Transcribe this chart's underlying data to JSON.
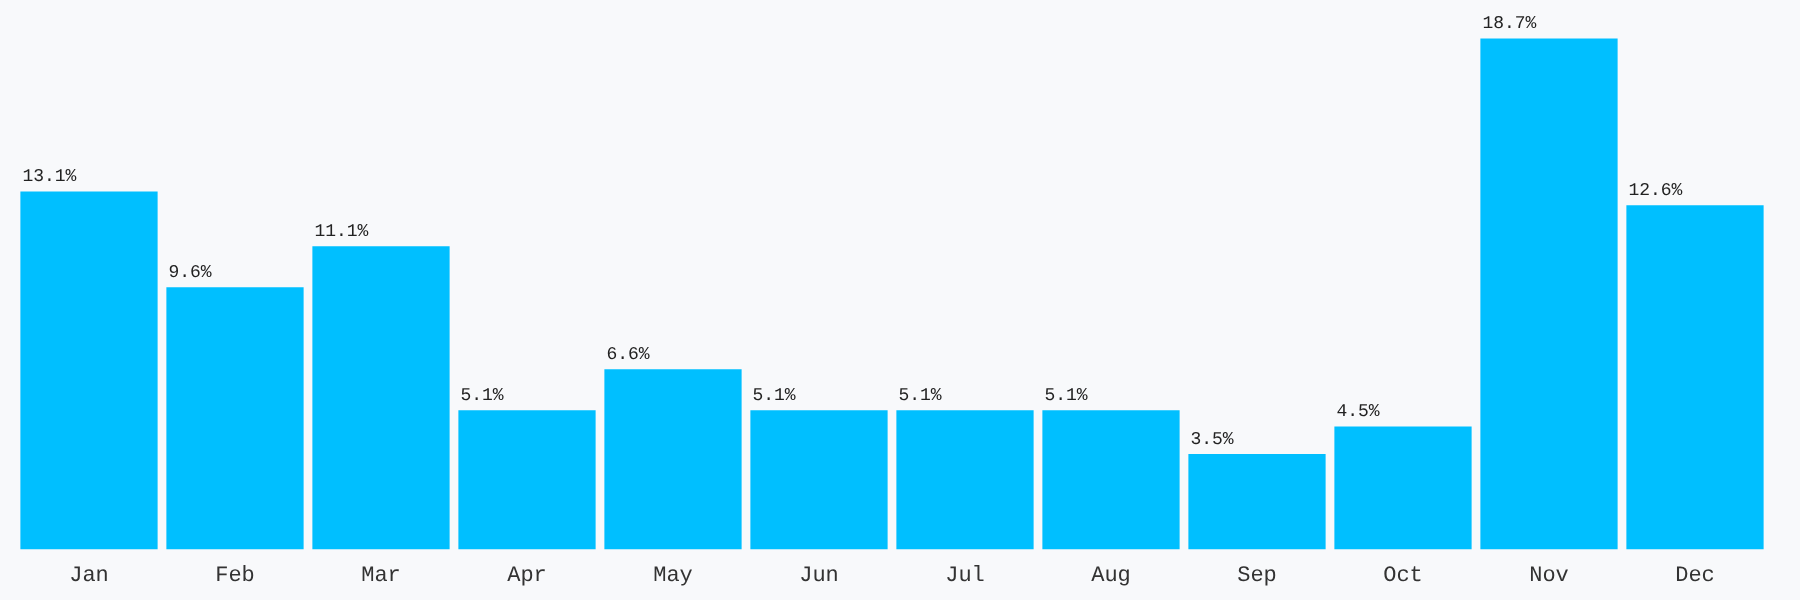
{
  "chart_data": {
    "type": "bar",
    "categories": [
      "Jan",
      "Feb",
      "Mar",
      "Apr",
      "May",
      "Jun",
      "Jul",
      "Aug",
      "Sep",
      "Oct",
      "Nov",
      "Dec"
    ],
    "values": [
      13.1,
      9.6,
      11.1,
      5.1,
      6.6,
      5.1,
      5.1,
      5.1,
      3.5,
      4.5,
      18.7,
      12.6
    ],
    "value_labels": [
      "13.1%",
      "9.6%",
      "11.1%",
      "5.1%",
      "6.6%",
      "5.1%",
      "5.1%",
      "5.1%",
      "3.5%",
      "4.5%",
      "18.7%",
      "12.6%"
    ],
    "color": "#00bfff",
    "grid": false,
    "legend": false
  }
}
